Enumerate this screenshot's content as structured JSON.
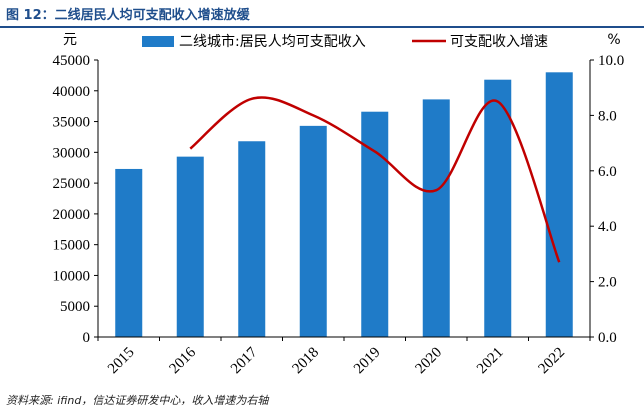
{
  "figure": {
    "title": "图 12：二线居民人均可支配收入增速放缓",
    "source": "资料来源: ifind，信达证券研发中心，收入增速为右轴"
  },
  "chart_data": {
    "type": "bar+line",
    "categories": [
      "2015",
      "2016",
      "2017",
      "2018",
      "2019",
      "2020",
      "2021",
      "2022"
    ],
    "series": [
      {
        "name": "二线城市:居民人均可支配收入",
        "type": "bar",
        "axis": "left",
        "color": "#1f7bc8",
        "values": [
          27300,
          29300,
          31800,
          34300,
          36600,
          38600,
          41800,
          43000
        ]
      },
      {
        "name": "可支配收入增速",
        "type": "line",
        "axis": "right",
        "color": "#c00000",
        "smooth": true,
        "values": [
          null,
          6.8,
          8.6,
          8.0,
          6.7,
          5.3,
          8.5,
          2.7
        ]
      }
    ],
    "left_axis": {
      "unit": "元",
      "range": [
        0,
        45000
      ],
      "ticks": [
        "0",
        "5000",
        "10000",
        "15000",
        "20000",
        "25000",
        "30000",
        "35000",
        "40000",
        "45000"
      ]
    },
    "right_axis": {
      "unit": "%",
      "range": [
        0,
        10
      ],
      "ticks": [
        "0.0",
        "2.0",
        "4.0",
        "6.0",
        "8.0",
        "10.0"
      ]
    },
    "legend_position": "top",
    "grid": false
  }
}
